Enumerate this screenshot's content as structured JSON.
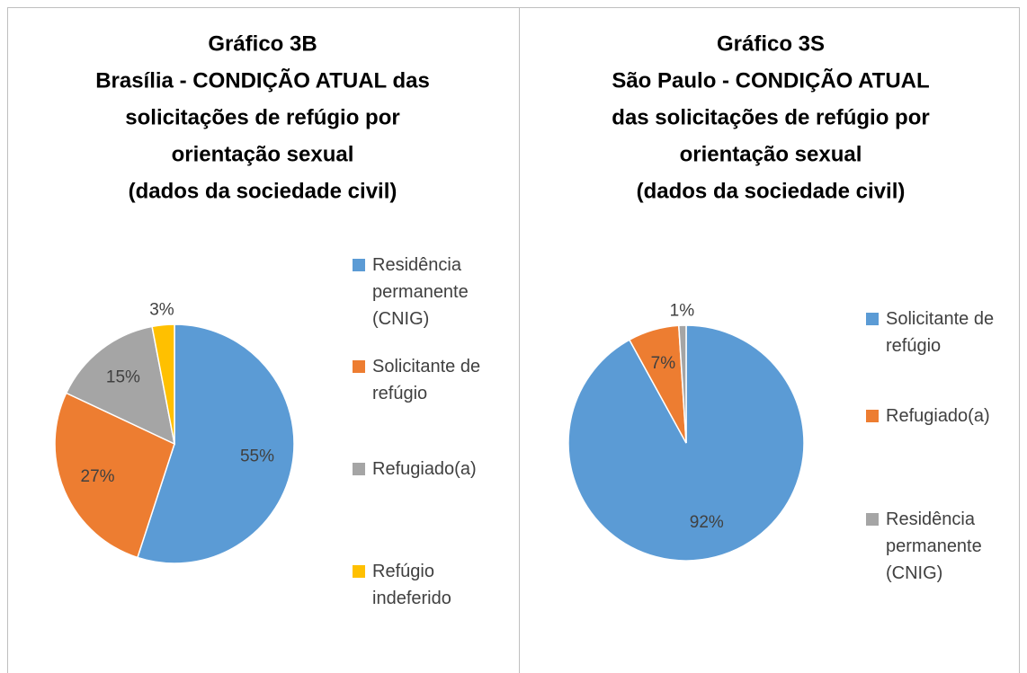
{
  "chart_data": [
    {
      "type": "pie",
      "title": [
        "Gráfico 3B",
        "Brasília - CONDIÇÃO ATUAL das",
        "solicitações de refúgio por",
        "orientação sexual",
        "(dados da sociedade civil)"
      ],
      "categories": [
        "Residência permanente (CNIG)",
        "Solicitante de refúgio",
        "Refugiado(a)",
        "Refúgio indeferido"
      ],
      "values": [
        55,
        27,
        15,
        3
      ],
      "value_labels": [
        "55%",
        "27%",
        "15%",
        "3%"
      ],
      "colors": [
        "#5b9bd5",
        "#ed7d31",
        "#a5a5a5",
        "#ffc000"
      ],
      "legend": "right"
    },
    {
      "type": "pie",
      "title": [
        "Gráfico 3S",
        "São Paulo - CONDIÇÃO ATUAL",
        "das solicitações de refúgio por",
        "orientação sexual",
        "(dados da sociedade civil)"
      ],
      "categories": [
        "Solicitante de refúgio",
        "Refugiado(a)",
        "Residência permanente (CNIG)"
      ],
      "values": [
        92,
        7,
        1
      ],
      "value_labels": [
        "92%",
        "7%",
        "1%"
      ],
      "colors": [
        "#5b9bd5",
        "#ed7d31",
        "#a5a5a5"
      ],
      "legend": "right"
    }
  ]
}
